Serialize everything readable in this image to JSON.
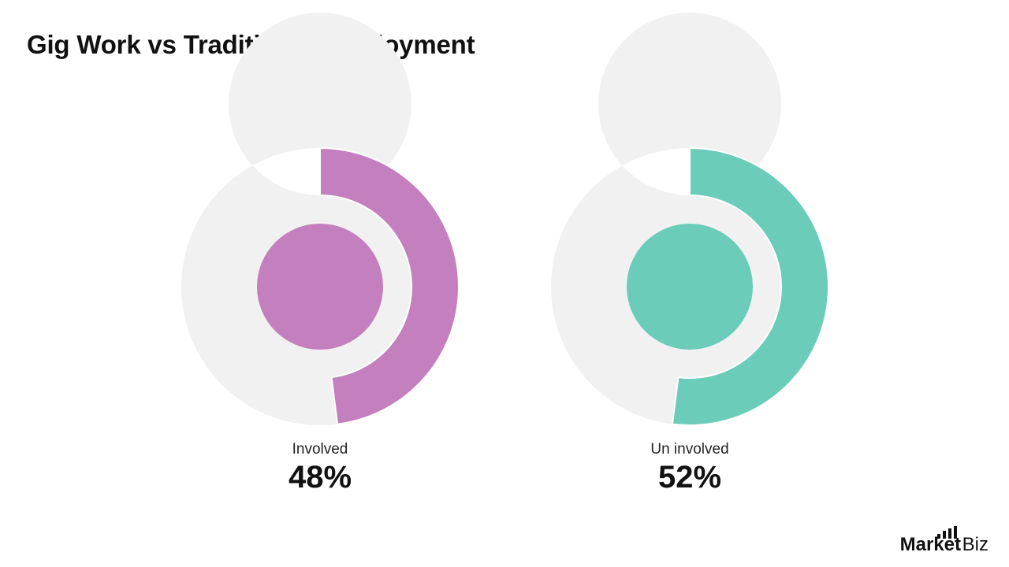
{
  "title": "Gig Work vs Traditional Employment",
  "chart_data": [
    {
      "type": "pie",
      "variant": "donut",
      "label": "Involved",
      "value": 48,
      "value_label": "48%",
      "color": "#c47fbe",
      "track_color": "#f1f1f1"
    },
    {
      "type": "pie",
      "variant": "donut",
      "label": "Un involved",
      "value": 52,
      "value_label": "52%",
      "color": "#6bcdb9",
      "track_color": "#f1f1f1"
    }
  ],
  "logo": {
    "main": "Market",
    "suffix": ".Biz"
  }
}
